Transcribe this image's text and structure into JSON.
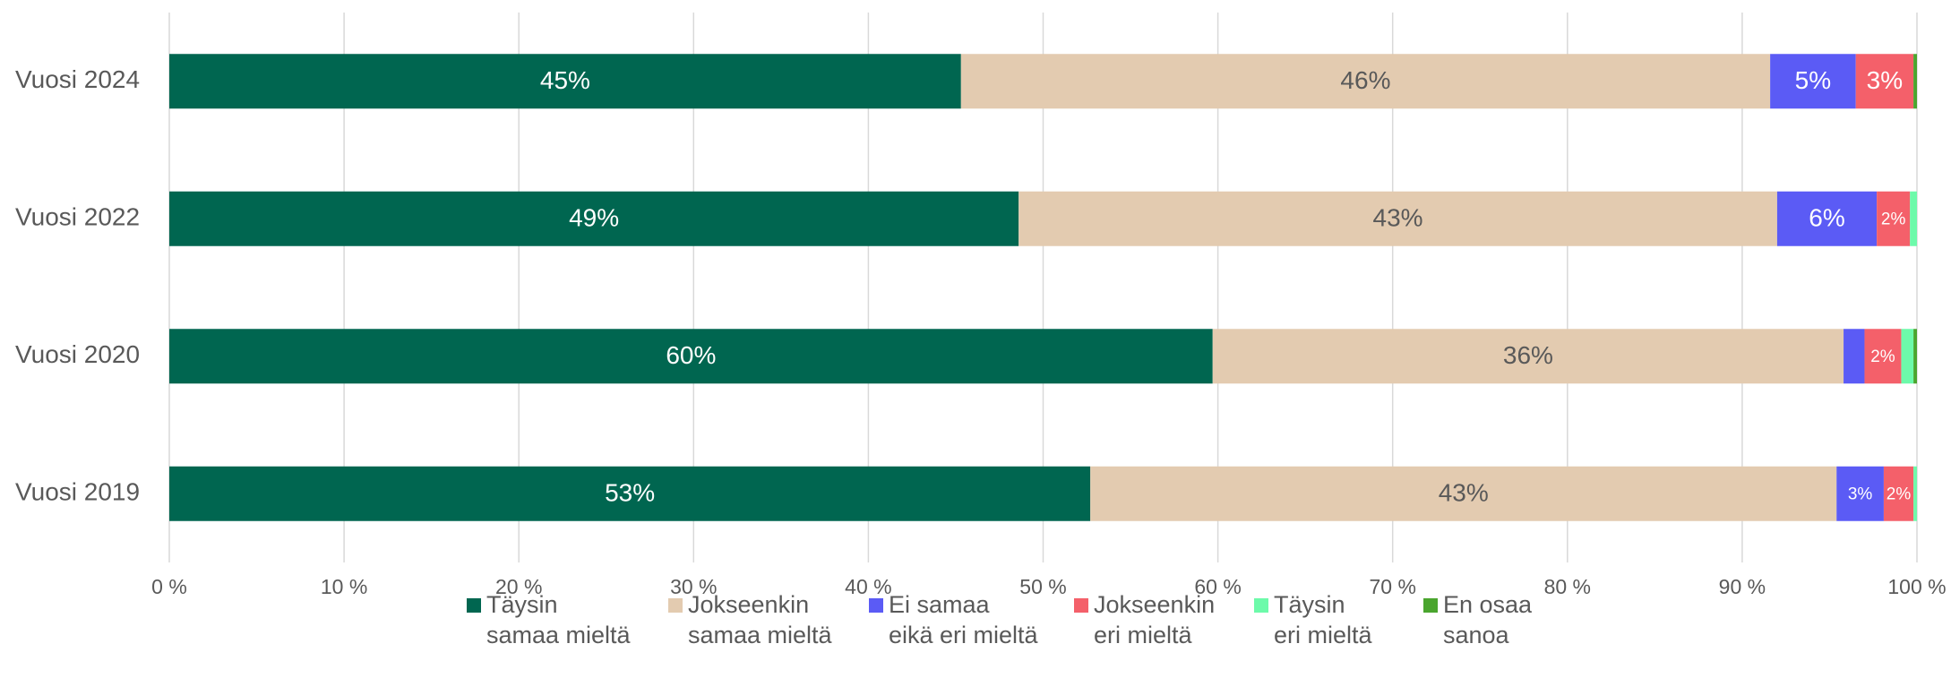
{
  "chart_data": {
    "type": "stacked-bar-horizontal",
    "categories": [
      "Vuosi 2024",
      "Vuosi 2022",
      "Vuosi 2020",
      "Vuosi 2019"
    ],
    "series": [
      {
        "name": "Täysin\nsamaa mieltä",
        "color": "#006650",
        "values": [
          45.3,
          48.6,
          59.7,
          52.7
        ],
        "value_labels": [
          "45%",
          "49%",
          "60%",
          "53%"
        ]
      },
      {
        "name": "Jokseenkin\nsamaa mieltä",
        "color": "#e3cbb0",
        "values": [
          46.3,
          43.4,
          36.1,
          42.7
        ],
        "value_labels": [
          "46%",
          "43%",
          "36%",
          "43%"
        ]
      },
      {
        "name": "Ei samaa\neikä eri mieltä",
        "color": "#5b5bf5",
        "values": [
          4.9,
          5.7,
          1.2,
          2.7
        ],
        "value_labels": [
          "5%",
          "6%",
          null,
          "3%"
        ]
      },
      {
        "name": "Jokseenkin\neri mieltä",
        "color": "#f4606a",
        "values": [
          3.3,
          1.9,
          2.1,
          1.7
        ],
        "value_labels": [
          "3%",
          "2%",
          "2%",
          "2%"
        ]
      },
      {
        "name": "Täysin\neri mieltä",
        "color": "#6dfaaa",
        "values": [
          0,
          0.4,
          0.7,
          0.2
        ],
        "value_labels": [
          null,
          null,
          null,
          null
        ]
      },
      {
        "name": "En osaa\nsanoa",
        "color": "#4aa52e",
        "values": [
          0.2,
          0,
          0.2,
          0
        ],
        "value_labels": [
          null,
          null,
          null,
          null
        ]
      }
    ],
    "xlim": [
      0,
      100
    ],
    "xticks": [
      {
        "value": 0,
        "label": "0 %"
      },
      {
        "value": 10,
        "label": "10 %"
      },
      {
        "value": 20,
        "label": "20 %"
      },
      {
        "value": 30,
        "label": "30 %"
      },
      {
        "value": 40,
        "label": "40 %"
      },
      {
        "value": 50,
        "label": "50 %"
      },
      {
        "value": 60,
        "label": "60 %"
      },
      {
        "value": 70,
        "label": "70 %"
      },
      {
        "value": 80,
        "label": "80 %"
      },
      {
        "value": 90,
        "label": "90 %"
      },
      {
        "value": 100,
        "label": "100 %"
      }
    ],
    "grid": true,
    "legend": "bottom"
  }
}
